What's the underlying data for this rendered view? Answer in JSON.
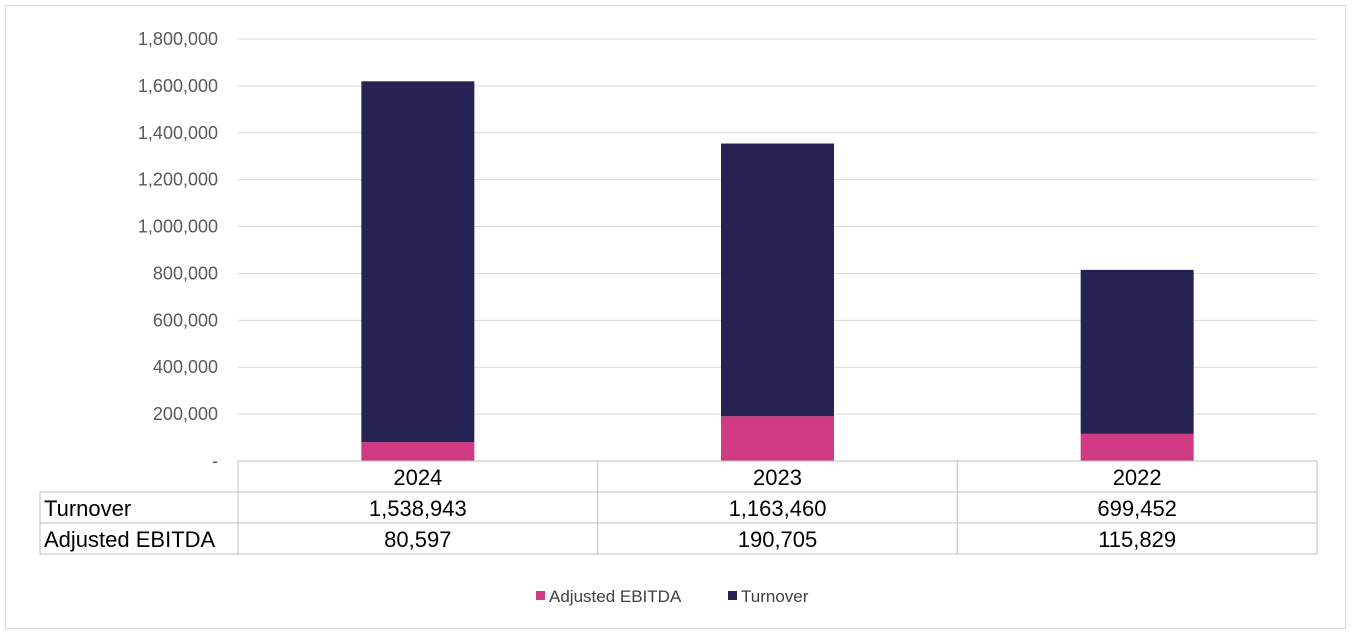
{
  "chart_data": {
    "type": "bar",
    "stacked": true,
    "categories": [
      "2024",
      "2023",
      "2022"
    ],
    "series": [
      {
        "name": "Adjusted EBITDA",
        "values": [
          80597,
          190705,
          115829
        ],
        "color": "#cf3a82"
      },
      {
        "name": "Turnover",
        "values": [
          1538943,
          1163460,
          699452
        ],
        "color": "#262254"
      }
    ],
    "table_rows": [
      {
        "label": "Turnover",
        "values": [
          "1,538,943",
          "1,163,460",
          "699,452"
        ]
      },
      {
        "label": "Adjusted EBITDA",
        "values": [
          "80,597",
          "190,705",
          "115,829"
        ]
      }
    ],
    "y_ticks": [
      "-",
      "200,000",
      "400,000",
      "600,000",
      "800,000",
      "1,000,000",
      "1,200,000",
      "1,400,000",
      "1,600,000",
      "1,800,000"
    ],
    "ylim": [
      0,
      1800000
    ],
    "grid": true,
    "legend_position": "bottom",
    "legend_order": [
      "Adjusted EBITDA",
      "Turnover"
    ]
  }
}
